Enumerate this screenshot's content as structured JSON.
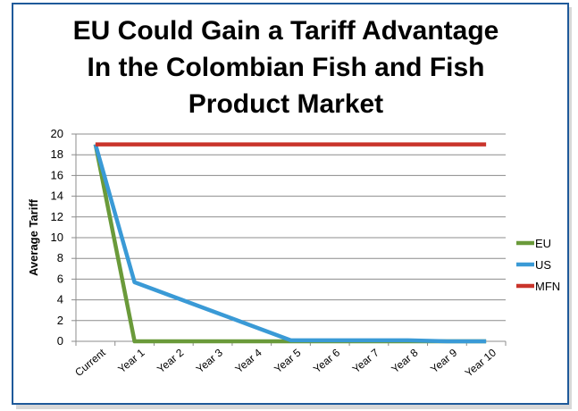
{
  "chart_data": {
    "type": "line",
    "title_lines": [
      "EU Could Gain a Tariff Advantage",
      "In the Colombian Fish and Fish",
      "Product Market"
    ],
    "xlabel": "",
    "ylabel": "Average Tariff",
    "ylim": [
      0,
      20
    ],
    "yticks": [
      "0",
      "2",
      "4",
      "6",
      "8",
      "10",
      "12",
      "14",
      "16",
      "18",
      "20"
    ],
    "categories": [
      "Current",
      "Year 1",
      "Year 2",
      "Year 3",
      "Year 4",
      "Year 5",
      "Year 6",
      "Year 7",
      "Year 8",
      "Year 9",
      "Year 10"
    ],
    "grid": true,
    "legend_position": "right",
    "series": [
      {
        "name": "EU",
        "color": "#6a9a3a",
        "values": [
          19,
          0,
          0,
          0,
          0,
          0,
          0,
          0,
          0,
          0,
          0
        ]
      },
      {
        "name": "US",
        "color": "#3a9ad6",
        "values": [
          19,
          5.7,
          4.3,
          2.9,
          1.5,
          0.1,
          0.1,
          0.1,
          0.1,
          0,
          0
        ]
      },
      {
        "name": "MFN",
        "color": "#c9342b",
        "values": [
          19,
          19,
          19,
          19,
          19,
          19,
          19,
          19,
          19,
          19,
          19
        ]
      }
    ]
  },
  "colors": {
    "border": "#1f5a9a",
    "grid": "#8c8c8c",
    "axis": "#8c8c8c"
  }
}
